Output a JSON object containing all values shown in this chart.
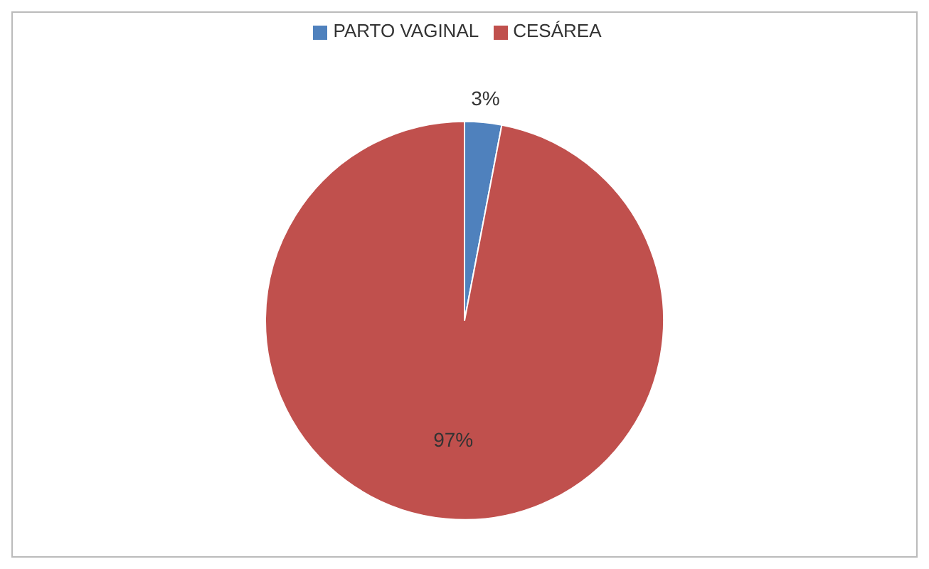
{
  "chart_data": {
    "type": "pie",
    "categories": [
      "PARTO VAGINAL",
      "CESÁREA"
    ],
    "values": [
      3,
      97
    ],
    "colors": [
      "#4f81bd",
      "#c0504d"
    ],
    "value_labels": [
      "3%",
      "97%"
    ],
    "legend": "top"
  }
}
